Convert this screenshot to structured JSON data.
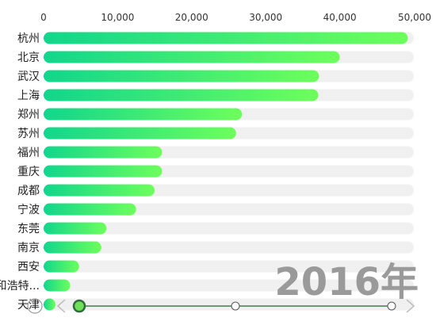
{
  "chart_data": {
    "type": "bar",
    "orientation": "horizontal",
    "categories": [
      "杭州",
      "北京",
      "武汉",
      "上海",
      "郑州",
      "苏州",
      "福州",
      "重庆",
      "成都",
      "宁波",
      "东莞",
      "南京",
      "西安",
      "和浩特...",
      "天津"
    ],
    "values": [
      49200,
      40000,
      37200,
      37100,
      26800,
      26000,
      16000,
      16000,
      15000,
      12500,
      8500,
      7800,
      4800,
      3600,
      1300
    ],
    "xlim": [
      0,
      50000
    ],
    "x_ticks": [
      "0",
      "10,000",
      "20,000",
      "30,000",
      "40,000",
      "50,000"
    ],
    "grid": false,
    "colors": {
      "bar_start": "#11d68c",
      "bar_end": "#6dff5c",
      "track": "#f0f0f0"
    }
  },
  "timeline": {
    "current_label": "2016年",
    "points": 3,
    "current_index": 0,
    "line_color": "#3e7c4c",
    "handle_color": "#6fe05a"
  }
}
